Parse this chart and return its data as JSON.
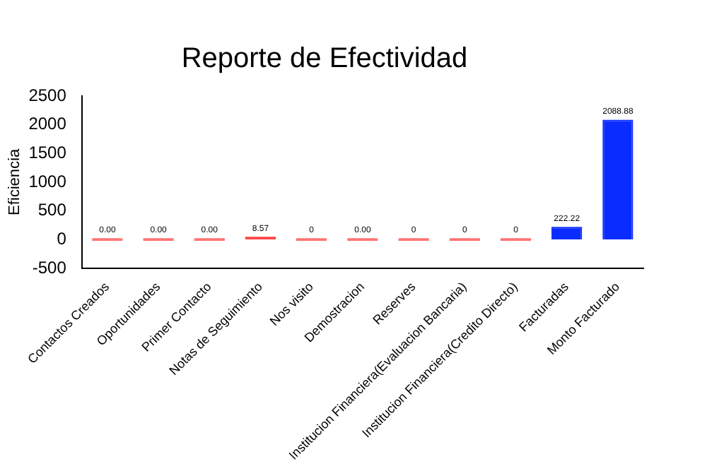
{
  "chart_data": {
    "type": "bar",
    "title": "Reporte de Efectividad",
    "ylabel": "Eficiencia",
    "categories": [
      "Contactos Creados",
      "Oportunidades",
      "Primer Contacto",
      "Notas de Seguimiento",
      "Nos visito",
      "Demostracion",
      "Reserves",
      "Institucion Financiera(Evaluacion Bancaria)",
      "Institucion Financiera(Credito Directo)",
      "Facturadas",
      "Monto Facturado"
    ],
    "values": [
      0,
      0,
      0,
      8.57,
      0,
      0,
      0,
      0,
      0,
      222.22,
      2088.88
    ],
    "value_labels": [
      "0.00",
      "0.00",
      "0.00",
      "8.57",
      "0",
      "0.00",
      "0",
      "0",
      "0",
      "222.22",
      "2088.88"
    ],
    "colors": [
      "#ff6666",
      "#ff6666",
      "#ff6666",
      "#ff3333",
      "#ff6666",
      "#ff6666",
      "#ff6666",
      "#ff6666",
      "#ff6666",
      "#0a2cff",
      "#0a2cff"
    ],
    "ylim": [
      -500,
      2500
    ],
    "yticks": [
      -500,
      0,
      500,
      1000,
      1500,
      2000,
      2500
    ],
    "grid": false,
    "legend": false
  }
}
